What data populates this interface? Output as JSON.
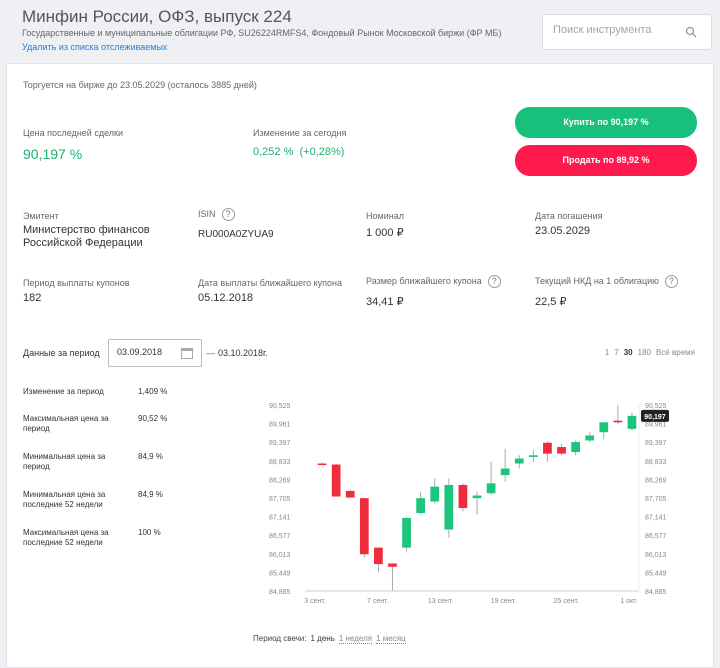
{
  "header": {
    "title": "Минфин России, ОФЗ, выпуск 224",
    "subtitle": "Государственные и муниципальные облигации РФ, SU26224RMFS4, Фондовый Рынок Московской биржи (ФР МБ)",
    "unwatch_label": "Удалить из списка отслеживаемых"
  },
  "search": {
    "placeholder": "Поиск инструмента",
    "icon": "search-icon"
  },
  "card": {
    "trading_until": "Торгуется на бирже до 23.05.2029 (осталось 3885 дней)",
    "last_price_label": "Цена последней сделки",
    "last_price": "90,197 %",
    "change_label": "Изменение за сегодня",
    "change_value": "0,252 %  (+0,28%)",
    "buy_label": "Купить по 90,197 %",
    "sell_label": "Продать по 89,92 %",
    "accent_buy": "#17c17c",
    "accent_sell": "#ff1a4d"
  },
  "details": {
    "issuer_label": "Эмитент",
    "issuer_line1": "Министерство финансов",
    "issuer_line2": "Российской Федерации",
    "isin_label": "ISIN",
    "isin": "RU000A0ZYUA9",
    "nominal_label": "Номинал",
    "nominal": "1 000 ₽",
    "maturity_label": "Дата погашения",
    "maturity": "23.05.2029",
    "coupon_period_label": "Период выплаты купонов",
    "coupon_period": "182",
    "next_coupon_date_label": "Дата выплаты ближайшего купона",
    "next_coupon_date": "05.12.2018",
    "next_coupon_size_label": "Размер ближайшего купона",
    "next_coupon_size": "34,41 ₽",
    "nkd_label": "Текущий НКД на 1 облигацию",
    "nkd": "22,5 ₽",
    "help_glyph": "?"
  },
  "period": {
    "label": "Данные за период",
    "from": "03.09.2018",
    "dash": "—",
    "to": "03.10.2018г.",
    "ranges": [
      "1",
      "7",
      "30",
      "180",
      "Всё время"
    ],
    "active_range": "30"
  },
  "stats": [
    {
      "label": "Изменение за период",
      "value": "1,409 %"
    },
    {
      "label": "Максимальная цена за период",
      "value": "90,52 %"
    },
    {
      "label": "Минимальная цена за период",
      "value": "84,9 %"
    },
    {
      "label": "Минимальная цена за последние 52 недели",
      "value": "84,9 %"
    },
    {
      "label": "Максимальная цена за последние 52 недели",
      "value": "100 %"
    }
  ],
  "candle_period": {
    "label": "Период свечи:",
    "options": [
      "1 день",
      "1 неделя",
      "1 месяц"
    ],
    "active": "1 день"
  },
  "chart_data": {
    "type": "candlestick",
    "y_ticks": [
      "90,525",
      "89,961",
      "89,397",
      "88,833",
      "88,269",
      "87,705",
      "87,141",
      "86,577",
      "86,013",
      "85,449",
      "84,885"
    ],
    "ylim": [
      84.885,
      90.525
    ],
    "x_ticks": [
      "3 сент.",
      "7 сент.",
      "13 сент.",
      "19 сент.",
      "25 сент.",
      "1 окт."
    ],
    "last_price_label": "90,197",
    "colors": {
      "up": "#1cc47c",
      "down": "#ef2b3d",
      "wick": "#aaaaaa"
    },
    "candles": [
      {
        "o": 88.75,
        "h": 88.78,
        "l": 88.7,
        "c": 88.72
      },
      {
        "o": 88.72,
        "h": 88.74,
        "l": 87.75,
        "c": 87.75
      },
      {
        "o": 87.92,
        "h": 87.95,
        "l": 87.7,
        "c": 87.72
      },
      {
        "o": 87.7,
        "h": 87.72,
        "l": 85.9,
        "c": 86.0
      },
      {
        "o": 86.2,
        "h": 86.2,
        "l": 85.45,
        "c": 85.7
      },
      {
        "o": 85.72,
        "h": 85.72,
        "l": 84.9,
        "c": 85.62
      },
      {
        "o": 86.2,
        "h": 87.12,
        "l": 86.1,
        "c": 87.1
      },
      {
        "o": 87.25,
        "h": 87.9,
        "l": 87.2,
        "c": 87.7
      },
      {
        "o": 87.6,
        "h": 88.3,
        "l": 87.55,
        "c": 88.05
      },
      {
        "o": 86.75,
        "h": 88.3,
        "l": 86.5,
        "c": 88.1
      },
      {
        "o": 88.1,
        "h": 88.15,
        "l": 87.3,
        "c": 87.4
      },
      {
        "o": 87.7,
        "h": 87.9,
        "l": 87.2,
        "c": 87.78
      },
      {
        "o": 87.85,
        "h": 88.8,
        "l": 87.8,
        "c": 88.15
      },
      {
        "o": 88.4,
        "h": 89.2,
        "l": 88.2,
        "c": 88.6
      },
      {
        "o": 88.75,
        "h": 89.0,
        "l": 88.6,
        "c": 88.9
      },
      {
        "o": 88.95,
        "h": 89.15,
        "l": 88.8,
        "c": 89.0
      },
      {
        "o": 89.38,
        "h": 89.42,
        "l": 88.8,
        "c": 89.05
      },
      {
        "o": 89.25,
        "h": 89.35,
        "l": 89.0,
        "c": 89.05
      },
      {
        "o": 89.1,
        "h": 89.45,
        "l": 89.0,
        "c": 89.4
      },
      {
        "o": 89.45,
        "h": 89.7,
        "l": 89.4,
        "c": 89.6
      },
      {
        "o": 89.7,
        "h": 90.0,
        "l": 89.5,
        "c": 90.0
      },
      {
        "o": 90.05,
        "h": 90.525,
        "l": 89.95,
        "c": 90.0
      },
      {
        "o": 89.8,
        "h": 90.3,
        "l": 89.75,
        "c": 90.197
      }
    ]
  }
}
